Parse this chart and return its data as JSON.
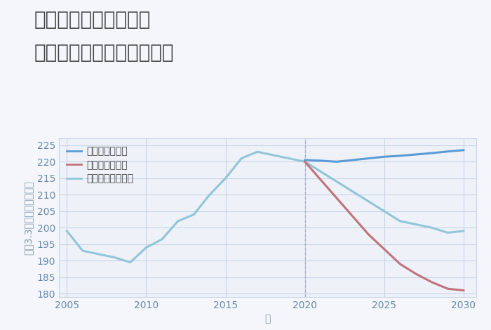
{
  "title_line1": "兵庫県西宮市深津町の",
  "title_line2": "中古マンションの価格推移",
  "xlabel": "年",
  "ylabel_parts": [
    "坪（3.3㎡）単価（万円）"
  ],
  "ylabel": "坪（3.3㎡）単価（万円）",
  "background_color": "#f4f6fb",
  "plot_background_color": "#eef2f8",
  "good_scenario": {
    "label": "グッドシナリオ",
    "color": "#5b9bd5",
    "x": [
      2020,
      2021,
      2022,
      2023,
      2024,
      2025,
      2026,
      2027,
      2028,
      2029,
      2030
    ],
    "y": [
      220.5,
      220.3,
      220.0,
      220.5,
      221.0,
      221.5,
      221.8,
      222.2,
      222.6,
      223.1,
      223.5
    ]
  },
  "bad_scenario": {
    "label": "バッドシナリオ",
    "color": "#c0737a",
    "x": [
      2020,
      2021,
      2022,
      2023,
      2024,
      2025,
      2026,
      2027,
      2028,
      2029,
      2030
    ],
    "y": [
      220.0,
      214.5,
      209.0,
      203.5,
      198.0,
      193.5,
      189.0,
      186.0,
      183.5,
      181.5,
      181.0
    ]
  },
  "normal_scenario": {
    "label": "ノーマルシナリオ",
    "color": "#92c5d8",
    "x": [
      2005,
      2006,
      2007,
      2008,
      2009,
      2010,
      2011,
      2012,
      2013,
      2014,
      2015,
      2016,
      2017,
      2018,
      2019,
      2020,
      2021,
      2022,
      2023,
      2024,
      2025,
      2026,
      2027,
      2028,
      2029,
      2030
    ],
    "y": [
      199,
      193,
      192,
      191,
      189.5,
      194,
      196.5,
      202,
      204,
      210,
      215,
      221,
      223,
      222,
      221,
      220,
      217,
      214,
      211,
      208,
      205,
      202,
      201,
      200,
      198.5,
      199
    ]
  },
  "vline_x": 2020,
  "vline_color": "#aaaacc",
  "xlim": [
    2004.5,
    2030.8
  ],
  "ylim": [
    179,
    227
  ],
  "yticks": [
    180,
    185,
    190,
    195,
    200,
    205,
    210,
    215,
    220,
    225
  ],
  "xticks": [
    2005,
    2010,
    2015,
    2020,
    2025,
    2030
  ],
  "grid_color": "#c8d4e8",
  "title_color": "#444444",
  "tick_color": "#6688aa",
  "axis_color": "#8899aa",
  "title_fontsize": 20,
  "label_fontsize": 10,
  "tick_fontsize": 10,
  "line_width": 2.2,
  "legend_fontsize": 10
}
